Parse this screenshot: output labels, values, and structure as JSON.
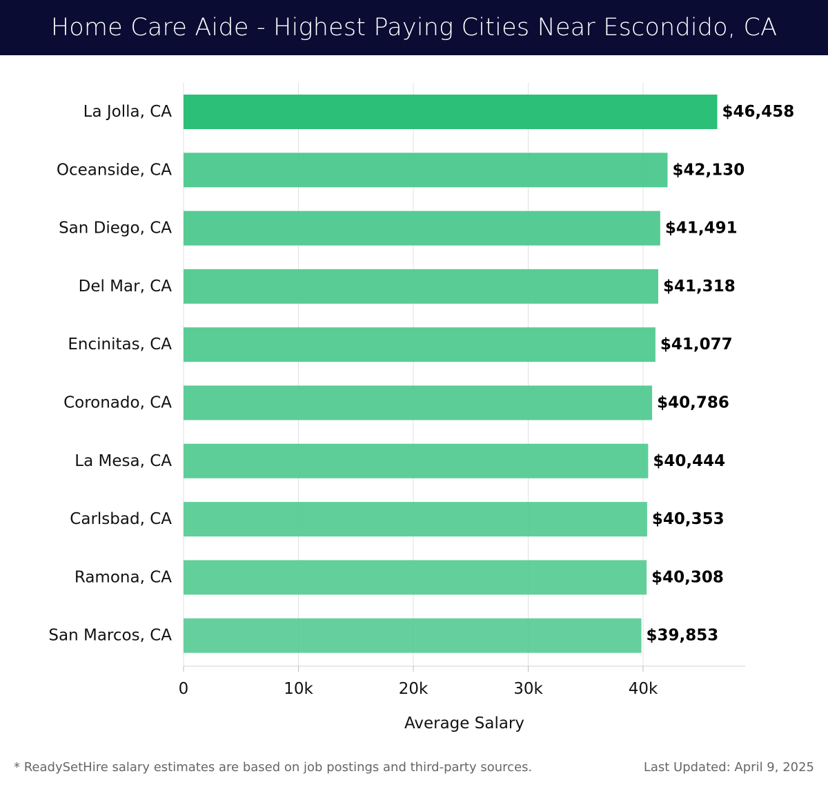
{
  "header": {
    "title": "Home Care Aide - Highest Paying Cities Near Escondido, CA"
  },
  "chart_data": {
    "type": "bar",
    "orientation": "horizontal",
    "title": "Home Care Aide - Highest Paying Cities Near Escondido, CA",
    "xlabel": "Average Salary",
    "ylabel": "",
    "xlim": [
      0,
      49000
    ],
    "x_ticks": [
      0,
      10000,
      20000,
      30000,
      40000
    ],
    "x_tick_labels": [
      "0",
      "10k",
      "20k",
      "30k",
      "40k"
    ],
    "grid": "vertical",
    "categories": [
      "La Jolla, CA",
      "Oceanside, CA",
      "San Diego, CA",
      "Del Mar, CA",
      "Encinitas, CA",
      "Coronado, CA",
      "La Mesa, CA",
      "Carlsbad, CA",
      "Ramona, CA",
      "San Marcos, CA"
    ],
    "values": [
      46458,
      42130,
      41491,
      41318,
      41077,
      40786,
      40444,
      40353,
      40308,
      39853
    ],
    "value_labels": [
      "$46,458",
      "$42,130",
      "$41,491",
      "$41,318",
      "$41,077",
      "$40,786",
      "$40,444",
      "$40,353",
      "$40,308",
      "$39,853"
    ],
    "colors": {
      "highlight": "#2bbf77",
      "bar": "#4ec98e",
      "grid": "#e0e0e0"
    }
  },
  "footer": {
    "note": "* ReadySetHire salary estimates are based on job postings and third-party sources.",
    "updated": "Last Updated: April 9, 2025"
  }
}
